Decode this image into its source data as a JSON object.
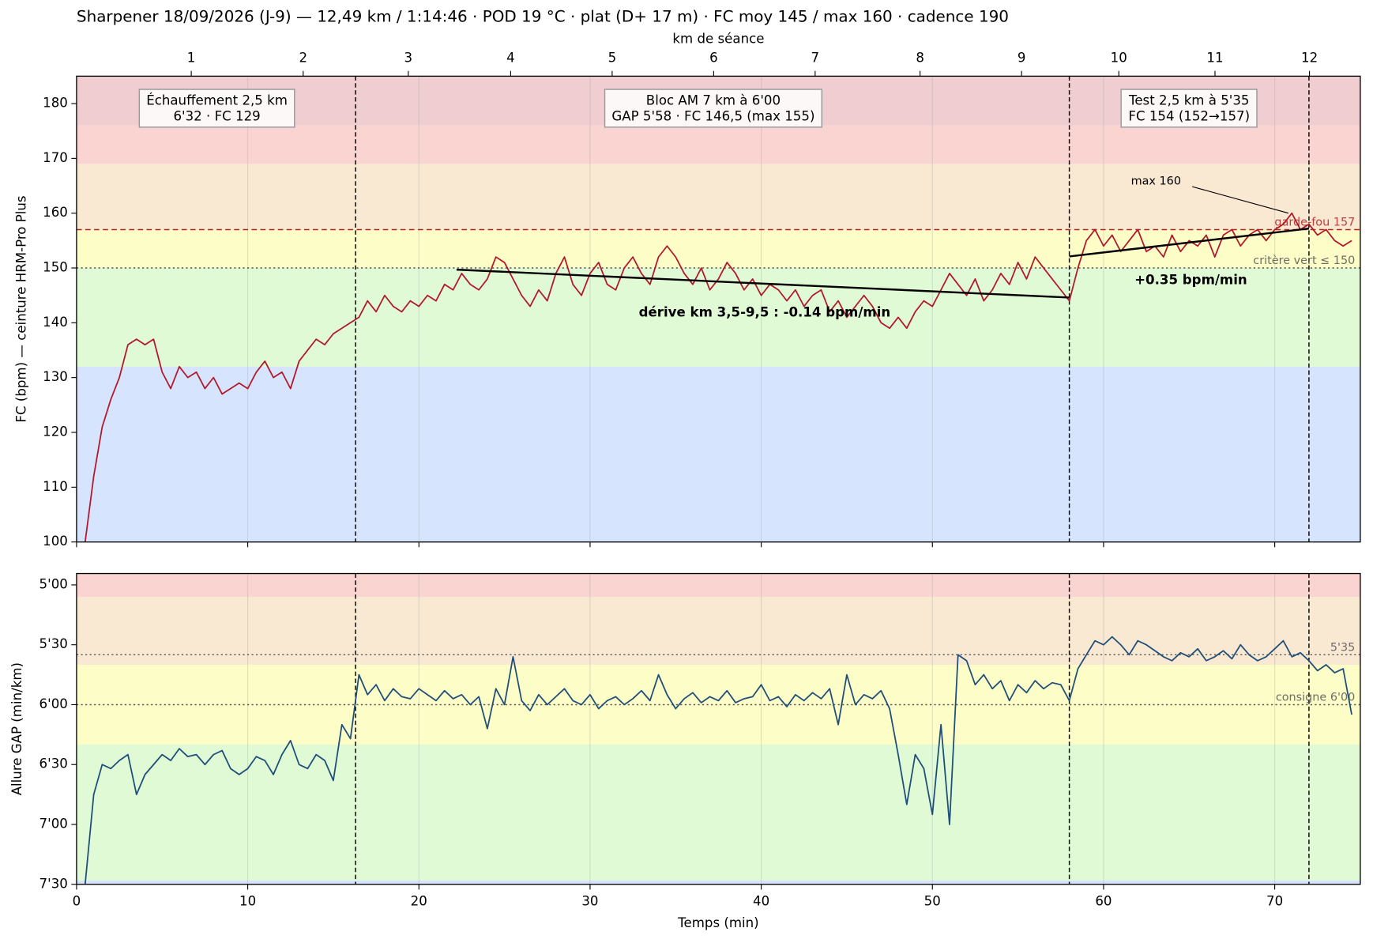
{
  "title": "Sharpener 18/09/2026 (J-9) — 12,49 km / 1:14:46 · POD 19 °C · plat (D+ 17 m) · FC moy 145 / max 160 · cadence 190",
  "chart_data": [
    {
      "type": "line",
      "ylabel": "FC (bpm) — ceinture HRM-Pro Plus",
      "x2label": "km de séance",
      "x2ticks": [
        1,
        2,
        3,
        4,
        5,
        6,
        7,
        8,
        9,
        10,
        11,
        12
      ],
      "x2_at": [
        6.7,
        13.24,
        19.38,
        25.36,
        31.29,
        37.22,
        43.15,
        49.28,
        55.21,
        60.89,
        66.51,
        72.03
      ],
      "xlim": [
        0,
        75
      ],
      "xticks": [
        0,
        10,
        20,
        30,
        40,
        50,
        60,
        70
      ],
      "ylim": [
        100,
        185
      ],
      "yticks": [
        100,
        110,
        120,
        130,
        140,
        150,
        160,
        170,
        180
      ],
      "grid": true,
      "zones": [
        {
          "from": 100,
          "to": 132,
          "color": "#d6e4fd"
        },
        {
          "from": 132,
          "to": 150,
          "color": "#e0fad6"
        },
        {
          "from": 150,
          "to": 157,
          "color": "#fdfdc8"
        },
        {
          "from": 157,
          "to": 169,
          "color": "#f9e8d2"
        },
        {
          "from": 169,
          "to": 176,
          "color": "#f9d4d0"
        },
        {
          "from": 176,
          "to": 185,
          "color": "#efcdd0"
        }
      ],
      "vlines": [
        16.3,
        58,
        72
      ],
      "hlines": [
        {
          "value": 157,
          "label": "garde-fou 157",
          "color": "#b22222",
          "style": "dashed"
        },
        {
          "value": 150,
          "label": "critère vert ≤ 150",
          "color": "#555555",
          "style": "dotted"
        }
      ],
      "boxes": [
        {
          "lines": [
            "Échauffement 2,5 km",
            "6'32 · FC 129"
          ],
          "x": 8.2,
          "y": 179
        },
        {
          "lines": [
            "Bloc AM 7 km à 6'00",
            "GAP 5'58 · FC 146,5 (max 155)"
          ],
          "x": 37.2,
          "y": 179
        },
        {
          "lines": [
            "Test 2,5 km à 5'35",
            "FC 154 (152→157)"
          ],
          "x": 65,
          "y": 179
        }
      ],
      "trends": [
        {
          "x": [
            22.2,
            58
          ],
          "y": [
            149.7,
            144.6
          ],
          "label": "dérive km 3,5-9,5 : -0.14 bpm/min",
          "label_x": 40.2,
          "label_y": 141.8
        },
        {
          "x": [
            58,
            72
          ],
          "y": [
            152.1,
            157.2
          ],
          "label": "+0.35 bpm/min",
          "label_x": 65.1,
          "label_y": 147.7
        }
      ],
      "arrow": {
        "text": "max 160",
        "x": 61.6,
        "y": 165.8,
        "to_x": 70.8,
        "to_y": 160
      },
      "x": [
        0.5,
        1,
        1.5,
        2,
        2.5,
        3,
        3.5,
        4,
        4.5,
        5,
        5.5,
        6,
        6.5,
        7,
        7.5,
        8,
        8.5,
        9,
        9.5,
        10,
        10.5,
        11,
        11.5,
        12,
        12.5,
        13,
        13.5,
        14,
        14.5,
        15,
        15.5,
        16,
        16.5,
        17,
        17.5,
        18,
        18.5,
        19,
        19.5,
        20,
        20.5,
        21,
        21.5,
        22,
        22.5,
        23,
        23.5,
        24,
        24.5,
        25,
        25.5,
        26,
        26.5,
        27,
        27.5,
        28,
        28.5,
        29,
        29.5,
        30,
        30.5,
        31,
        31.5,
        32,
        32.5,
        33,
        33.5,
        34,
        34.5,
        35,
        35.5,
        36,
        36.5,
        37,
        37.5,
        38,
        38.5,
        39,
        39.5,
        40,
        40.5,
        41,
        41.5,
        42,
        42.5,
        43,
        43.5,
        44,
        44.5,
        45,
        45.5,
        46,
        46.5,
        47,
        47.5,
        48,
        48.5,
        49,
        49.5,
        50,
        50.5,
        51,
        51.5,
        52,
        52.5,
        53,
        53.5,
        54,
        54.5,
        55,
        55.5,
        56,
        56.5,
        57,
        57.5,
        58,
        58.5,
        59,
        59.5,
        60,
        60.5,
        61,
        61.5,
        62,
        62.5,
        63,
        63.5,
        64,
        64.5,
        65,
        65.5,
        66,
        66.5,
        67,
        67.5,
        68,
        68.5,
        69,
        69.5,
        70,
        70.5,
        71,
        71.5,
        72,
        72.5,
        73,
        73.5,
        74,
        74.5
      ],
      "series": [
        {
          "color": "#b2182b",
          "values": [
            100,
            112,
            121,
            126,
            130,
            136,
            137,
            136,
            137,
            131,
            128,
            132,
            130,
            131,
            128,
            130,
            127,
            128,
            129,
            128,
            131,
            133,
            130,
            131,
            128,
            133,
            135,
            137,
            136,
            138,
            139,
            140,
            141,
            144,
            142,
            145,
            143,
            142,
            144,
            143,
            145,
            144,
            147,
            146,
            149,
            147,
            146,
            148,
            152,
            151,
            148,
            145,
            143,
            146,
            144,
            149,
            152,
            147,
            145,
            149,
            151,
            147,
            146,
            150,
            152,
            149,
            147,
            152,
            154,
            152,
            149,
            147,
            150,
            146,
            148,
            151,
            149,
            146,
            148,
            145,
            147,
            146,
            144,
            146,
            143,
            145,
            146,
            142,
            144,
            141,
            143,
            145,
            143,
            140,
            139,
            141,
            139,
            142,
            144,
            143,
            146,
            149,
            147,
            145,
            148,
            144,
            146,
            149,
            147,
            151,
            148,
            152,
            150,
            148,
            146,
            144,
            150,
            155,
            157,
            154,
            156,
            153,
            155,
            157,
            153,
            154,
            152,
            156,
            153,
            155,
            154,
            156,
            152,
            156,
            157,
            154,
            156,
            157,
            155,
            157,
            158,
            160,
            157,
            158,
            156,
            157,
            155,
            154,
            155
          ]
        }
      ]
    },
    {
      "type": "line",
      "ylabel": "Allure GAP (min/km)",
      "xlabel": "Temps (min)",
      "xlim": [
        0,
        75
      ],
      "xticks": [
        0,
        10,
        20,
        30,
        40,
        50,
        60,
        70
      ],
      "ylim": [
        450,
        294.3
      ],
      "yticks": [
        {
          "value": 300,
          "label": "5'00"
        },
        {
          "value": 330,
          "label": "5'30"
        },
        {
          "value": 360,
          "label": "6'00"
        },
        {
          "value": 390,
          "label": "6'30"
        },
        {
          "value": 420,
          "label": "7'00"
        },
        {
          "value": 450,
          "label": "7'30"
        }
      ],
      "grid": true,
      "zones": [
        {
          "from": 450,
          "to": 448,
          "color": "#d6e4fd"
        },
        {
          "from": 448,
          "to": 380,
          "color": "#e0fad6"
        },
        {
          "from": 380,
          "to": 340,
          "color": "#fdfdc8"
        },
        {
          "from": 340,
          "to": 306,
          "color": "#f9e8d2"
        },
        {
          "from": 306,
          "to": 294.3,
          "color": "#f9d4d0"
        }
      ],
      "vlines": [
        16.3,
        58,
        72
      ],
      "hlines": [
        {
          "value": 335,
          "label": "5'35",
          "color": "#555555",
          "style": "dotted"
        },
        {
          "value": 360,
          "label": "consigne 6'00",
          "color": "#555555",
          "style": "dotted"
        }
      ],
      "x": [
        0.5,
        1,
        1.5,
        2,
        2.5,
        3,
        3.5,
        4,
        4.5,
        5,
        5.5,
        6,
        6.5,
        7,
        7.5,
        8,
        8.5,
        9,
        9.5,
        10,
        10.5,
        11,
        11.5,
        12,
        12.5,
        13,
        13.5,
        14,
        14.5,
        15,
        15.5,
        16,
        16.5,
        17,
        17.5,
        18,
        18.5,
        19,
        19.5,
        20,
        20.5,
        21,
        21.5,
        22,
        22.5,
        23,
        23.5,
        24,
        24.5,
        25,
        25.5,
        26,
        26.5,
        27,
        27.5,
        28,
        28.5,
        29,
        29.5,
        30,
        30.5,
        31,
        31.5,
        32,
        32.5,
        33,
        33.5,
        34,
        34.5,
        35,
        35.5,
        36,
        36.5,
        37,
        37.5,
        38,
        38.5,
        39,
        39.5,
        40,
        40.5,
        41,
        41.5,
        42,
        42.5,
        43,
        43.5,
        44,
        44.5,
        45,
        45.5,
        46,
        46.5,
        47,
        47.5,
        48,
        48.5,
        49,
        49.5,
        50,
        50.5,
        51,
        51.5,
        52,
        52.5,
        53,
        53.5,
        54,
        54.5,
        55,
        55.5,
        56,
        56.5,
        57,
        57.5,
        58,
        58.5,
        59,
        59.5,
        60,
        60.5,
        61,
        61.5,
        62,
        62.5,
        63,
        63.5,
        64,
        64.5,
        65,
        65.5,
        66,
        66.5,
        67,
        67.5,
        68,
        68.5,
        69,
        69.5,
        70,
        70.5,
        71,
        71.5,
        72,
        72.5,
        73,
        73.5,
        74,
        74.5
      ],
      "series": [
        {
          "color": "#1f4e79",
          "values": [
            450,
            405,
            390,
            392,
            388,
            385,
            405,
            395,
            390,
            385,
            388,
            382,
            386,
            385,
            390,
            385,
            383,
            392,
            395,
            392,
            386,
            388,
            395,
            385,
            378,
            390,
            392,
            385,
            388,
            398,
            370,
            377,
            345,
            355,
            350,
            358,
            352,
            356,
            357,
            352,
            355,
            358,
            353,
            357,
            355,
            360,
            356,
            372,
            352,
            360,
            336,
            358,
            363,
            355,
            360,
            356,
            352,
            358,
            360,
            355,
            362,
            358,
            356,
            360,
            357,
            353,
            358,
            345,
            355,
            362,
            357,
            354,
            359,
            356,
            358,
            353,
            359,
            357,
            356,
            350,
            358,
            356,
            361,
            355,
            358,
            354,
            357,
            352,
            370,
            345,
            360,
            355,
            357,
            353,
            362,
            385,
            410,
            385,
            392,
            415,
            370,
            420,
            335,
            338,
            350,
            345,
            352,
            348,
            358,
            350,
            354,
            348,
            352,
            349,
            350,
            358,
            342,
            335,
            328,
            330,
            326,
            330,
            335,
            328,
            330,
            333,
            336,
            338,
            334,
            336,
            332,
            338,
            336,
            333,
            337,
            330,
            335,
            338,
            336,
            332,
            328,
            336,
            334,
            338,
            343,
            340,
            344,
            342,
            365
          ]
        }
      ]
    }
  ]
}
